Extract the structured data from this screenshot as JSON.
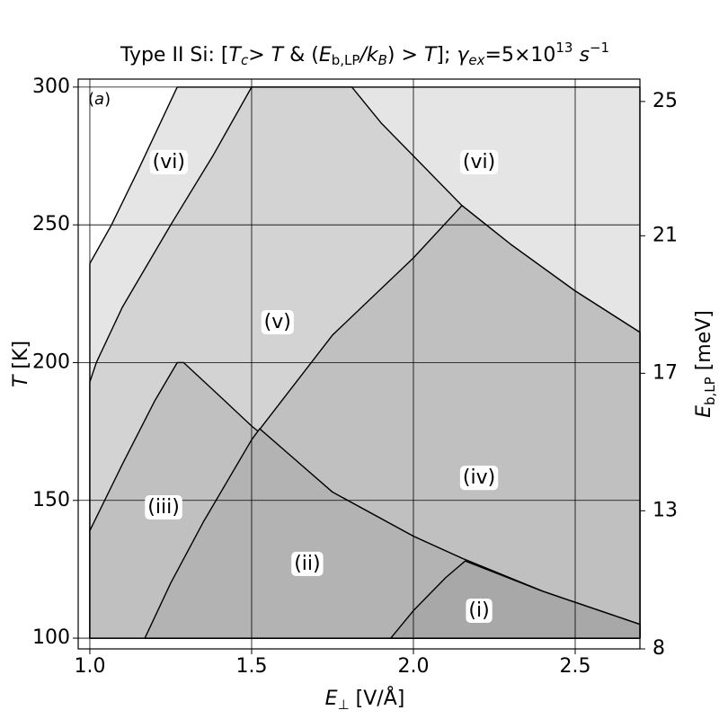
{
  "chart_data": {
    "type": "region",
    "title": [
      "Type II Si: [",
      "T",
      "c",
      "> ",
      "T",
      " & (",
      "E",
      "b,LP",
      "/",
      "k",
      "B",
      ") > ",
      "T",
      "]; ",
      "γ",
      "ex",
      "=5×10",
      "13",
      " ",
      "s",
      "−1"
    ],
    "xlabel": [
      "E",
      "⊥",
      " [V/Å]"
    ],
    "ylabel": [
      "T",
      " [K]"
    ],
    "y2label": [
      "E",
      "b,LP",
      " [meV]"
    ],
    "panel_label": [
      "(",
      "a",
      ")"
    ],
    "xlim": [
      0.964,
      2.7
    ],
    "ylim": [
      96.1,
      302.9
    ],
    "y2lim": [
      8.28,
      26.1
    ],
    "xticks": [
      {
        "value": 1,
        "label": "1.0"
      },
      {
        "value": 1.5,
        "label": "1.5"
      },
      {
        "value": 2,
        "label": "2.0"
      },
      {
        "value": 2.5,
        "label": "2.5"
      }
    ],
    "yticks": [
      100,
      150,
      200,
      250,
      300
    ],
    "y2ticks": [
      {
        "value": 25.4,
        "label": "25"
      },
      {
        "value": 21.2,
        "label": "21"
      },
      {
        "value": 16.9,
        "label": "17"
      },
      {
        "value": 12.6,
        "label": "13"
      },
      {
        "value": 8.28,
        "label": "8"
      }
    ],
    "grid": true,
    "regions": [
      {
        "color": "#e5e5e5",
        "x": [
          1.0,
          1.0,
          1.067,
          1.15,
          1.27,
          2.7,
          2.7
        ],
        "y": [
          100,
          236,
          250,
          270,
          300,
          300,
          100
        ]
      },
      {
        "color": "#d3d3d3",
        "x": [
          1.0,
          1.0,
          1.02,
          1.1,
          1.25,
          1.38,
          1.5,
          1.81,
          1.9,
          2.0,
          2.15,
          2.3,
          2.5,
          2.7,
          2.7
        ],
        "y": [
          100,
          193,
          200,
          220,
          250,
          275,
          300,
          300,
          287,
          275,
          257,
          243,
          226,
          211,
          100
        ]
      },
      {
        "color": "#c0c0c0",
        "x": [
          1.17,
          1.25,
          1.35,
          1.5,
          1.75,
          2.0,
          2.15,
          2.3,
          2.5,
          2.7,
          2.7
        ],
        "y": [
          100,
          120,
          142,
          172,
          210,
          238,
          257,
          243,
          226,
          211,
          100
        ]
      },
      {
        "color": "#c0c0c0",
        "x": [
          1.0,
          1.0,
          1.1,
          1.2,
          1.27,
          1.29,
          1.4,
          1.5,
          1.75,
          2.0,
          2.15,
          2.4,
          2.7,
          2.7
        ],
        "y": [
          100,
          139,
          163,
          186,
          200,
          200,
          188,
          177,
          153,
          137,
          129,
          117,
          105,
          100
        ]
      },
      {
        "color": "#b3b3b3",
        "x": [
          1.17,
          1.25,
          1.35,
          1.5,
          1.525,
          1.75,
          2.0,
          2.15,
          2.4,
          2.7,
          2.7
        ],
        "y": [
          100,
          120,
          142,
          172,
          176,
          153,
          137,
          129,
          117,
          105,
          100
        ]
      },
      {
        "color": "#a8a8a8",
        "x": [
          1.93,
          2.0,
          2.1,
          2.16,
          2.4,
          2.7,
          2.7
        ],
        "y": [
          100,
          110,
          122,
          128,
          117,
          105,
          100
        ]
      }
    ],
    "annotations": [
      {
        "text": "(vi)",
        "x": 1.244,
        "y": 272.6
      },
      {
        "text": "(vi)",
        "x": 2.203,
        "y": 272.6
      },
      {
        "text": "(v)",
        "x": 1.58,
        "y": 214.5
      },
      {
        "text": "(iv)",
        "x": 2.203,
        "y": 158
      },
      {
        "text": "(iii)",
        "x": 1.228,
        "y": 147.3
      },
      {
        "text": "(ii)",
        "x": 1.672,
        "y": 126.8
      },
      {
        "text": "(i)",
        "x": 2.203,
        "y": 109.8
      }
    ]
  }
}
